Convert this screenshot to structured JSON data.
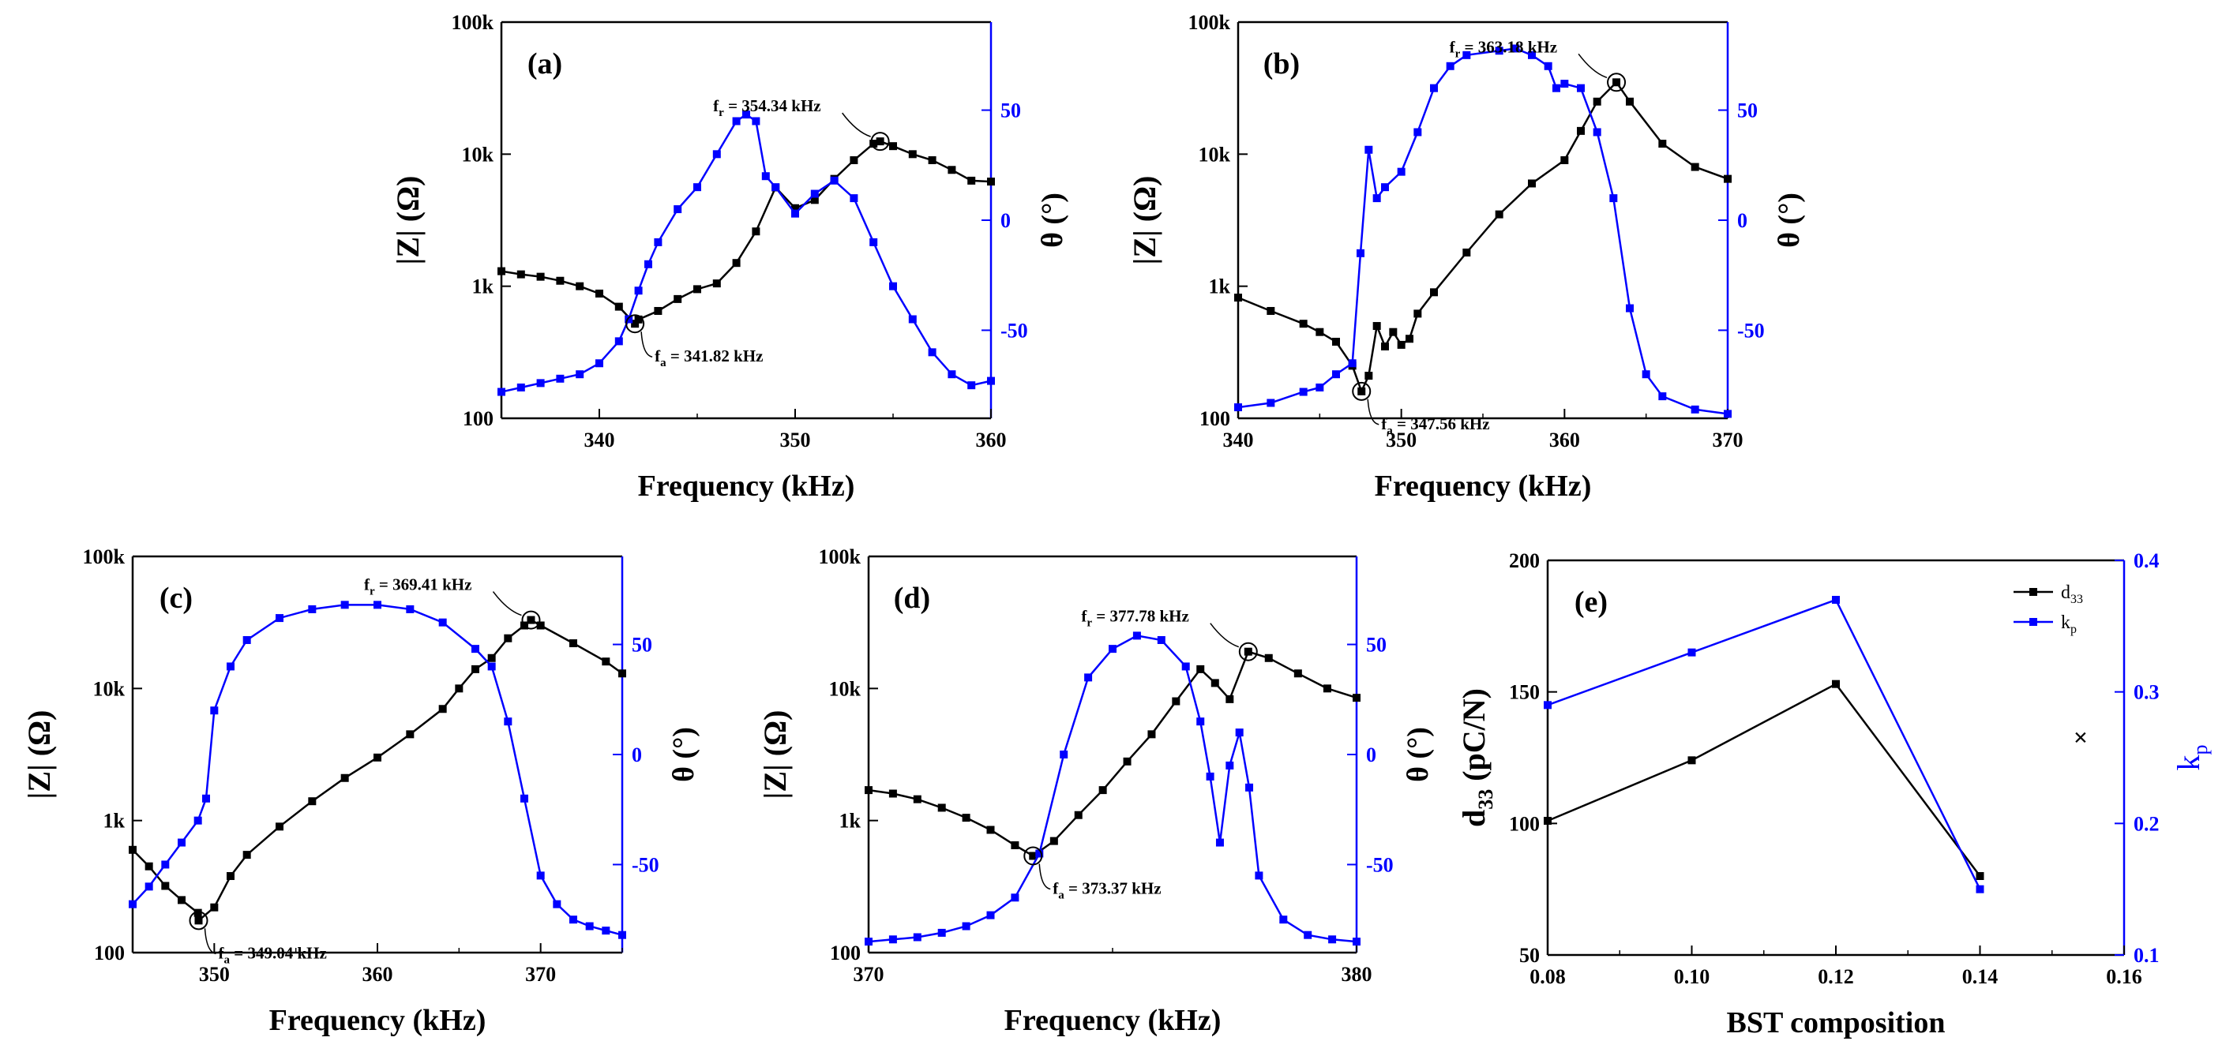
{
  "colors": {
    "impedance": "#000000",
    "phase": "#0000ff",
    "d33": "#000000",
    "kp": "#0000ff"
  },
  "chart_data": [
    {
      "type": "line",
      "label": "(a)",
      "xlabel": "Frequency (kHz)",
      "ylabel_left": "|Z| (Ω)",
      "ylabel_right": "θ (°)",
      "xlim": [
        335,
        360
      ],
      "xticks": [
        "340",
        "350",
        "360"
      ],
      "ylim_left": [
        100,
        100000
      ],
      "yscale_left": "log",
      "yticks_left": [
        "100",
        "1k",
        "10k",
        "100k"
      ],
      "ylim_right": [
        -90,
        90
      ],
      "yticks_right": [
        "-50",
        "0",
        "50"
      ],
      "annotations": [
        {
          "text": "fa = 341.82 kHz",
          "x": 341.82,
          "y": 520,
          "series": "impedance"
        },
        {
          "text": "fr = 354.34 kHz",
          "x": 354.34,
          "y": 12500,
          "series": "impedance"
        }
      ],
      "series": [
        {
          "name": "|Z|",
          "axis": "left",
          "color": "#000000",
          "x": [
            335,
            336,
            337,
            338,
            339,
            340,
            341,
            341.82,
            342,
            343,
            344,
            345,
            346,
            347,
            348,
            349,
            350,
            351,
            352,
            353,
            354,
            354.34,
            355,
            356,
            357,
            358,
            359,
            360
          ],
          "y": [
            1300,
            1230,
            1180,
            1100,
            1000,
            880,
            700,
            520,
            560,
            650,
            800,
            950,
            1050,
            1500,
            2600,
            5600,
            3900,
            4500,
            6500,
            9000,
            12000,
            12500,
            11500,
            10000,
            9000,
            7600,
            6300,
            6200
          ]
        },
        {
          "name": "θ",
          "axis": "right",
          "color": "#0000ff",
          "x": [
            335,
            336,
            337,
            338,
            339,
            340,
            341,
            341.5,
            342,
            342.5,
            343,
            344,
            345,
            346,
            347,
            347.5,
            348,
            348.5,
            349,
            350,
            351,
            352,
            353,
            354,
            355,
            356,
            357,
            358,
            359,
            360
          ],
          "y": [
            -78,
            -76,
            -74,
            -72,
            -70,
            -65,
            -55,
            -45,
            -32,
            -20,
            -10,
            5,
            15,
            30,
            45,
            48,
            45,
            20,
            15,
            3,
            12,
            18,
            10,
            -10,
            -30,
            -45,
            -60,
            -70,
            -75,
            -73
          ]
        }
      ]
    },
    {
      "type": "line",
      "label": "(b)",
      "xlabel": "Frequency (kHz)",
      "ylabel_left": "|Z| (Ω)",
      "ylabel_right": "θ (°)",
      "xlim": [
        340,
        370
      ],
      "xticks": [
        "340",
        "350",
        "360",
        "370"
      ],
      "ylim_left": [
        100,
        100000
      ],
      "yscale_left": "log",
      "yticks_left": [
        "100",
        "1k",
        "10k",
        "100k"
      ],
      "ylim_right": [
        -90,
        90
      ],
      "yticks_right": [
        "-50",
        "0",
        "50"
      ],
      "annotations": [
        {
          "text": "fa = 347.56 kHz",
          "x": 347.56,
          "y": 160,
          "series": "impedance"
        },
        {
          "text": "fr = 363.18 kHz",
          "x": 363.18,
          "y": 35000,
          "series": "impedance"
        }
      ],
      "series": [
        {
          "name": "|Z|",
          "axis": "left",
          "color": "#000000",
          "x": [
            340,
            342,
            344,
            345,
            346,
            347,
            347.56,
            348,
            348.5,
            349,
            349.5,
            350,
            350.5,
            351,
            352,
            354,
            356,
            358,
            360,
            361,
            362,
            363.18,
            364,
            366,
            368,
            370
          ],
          "y": [
            820,
            650,
            520,
            450,
            380,
            250,
            160,
            210,
            500,
            350,
            450,
            360,
            400,
            620,
            900,
            1800,
            3500,
            6000,
            9000,
            15000,
            25000,
            35000,
            25000,
            12000,
            8000,
            6500
          ]
        },
        {
          "name": "θ",
          "axis": "right",
          "color": "#0000ff",
          "x": [
            340,
            342,
            344,
            345,
            346,
            347,
            347.5,
            348,
            348.5,
            349,
            350,
            351,
            352,
            353,
            354,
            356,
            357,
            358,
            359,
            359.5,
            360,
            361,
            362,
            363,
            364,
            365,
            366,
            368,
            370
          ],
          "y": [
            -85,
            -83,
            -78,
            -76,
            -70,
            -65,
            -15,
            32,
            10,
            15,
            22,
            40,
            60,
            70,
            75,
            77,
            78,
            75,
            70,
            60,
            62,
            60,
            40,
            10,
            -40,
            -70,
            -80,
            -86,
            -88
          ]
        }
      ]
    },
    {
      "type": "line",
      "label": "(c)",
      "xlabel": "Frequency (kHz)",
      "ylabel_left": "|Z| (Ω)",
      "ylabel_right": "θ (°)",
      "xlim": [
        345,
        375
      ],
      "xticks": [
        "350",
        "360",
        "370"
      ],
      "ylim_left": [
        100,
        100000
      ],
      "yscale_left": "log",
      "yticks_left": [
        "100",
        "1k",
        "10k",
        "100k"
      ],
      "ylim_right": [
        -90,
        90
      ],
      "yticks_right": [
        "-50",
        "0",
        "50"
      ],
      "annotations": [
        {
          "text": "fa = 349.04 kHz",
          "x": 349.04,
          "y": 175,
          "series": "impedance"
        },
        {
          "text": "fr = 369.41 kHz",
          "x": 369.41,
          "y": 33000,
          "series": "impedance"
        }
      ],
      "series": [
        {
          "name": "|Z|",
          "axis": "left",
          "color": "#000000",
          "x": [
            345,
            346,
            347,
            348,
            349,
            349.04,
            350,
            351,
            352,
            354,
            356,
            358,
            360,
            362,
            364,
            365,
            366,
            367,
            368,
            369,
            369.41,
            370,
            372,
            374,
            375
          ],
          "y": [
            600,
            450,
            320,
            250,
            200,
            175,
            220,
            380,
            550,
            900,
            1400,
            2100,
            3000,
            4500,
            7000,
            10000,
            14000,
            17000,
            24000,
            30000,
            33000,
            30000,
            22000,
            16000,
            13000
          ]
        },
        {
          "name": "θ",
          "axis": "right",
          "color": "#0000ff",
          "x": [
            345,
            346,
            347,
            348,
            349,
            349.5,
            350,
            351,
            352,
            354,
            356,
            358,
            360,
            362,
            364,
            366,
            367,
            368,
            369,
            370,
            371,
            372,
            373,
            374,
            375
          ],
          "y": [
            -68,
            -60,
            -50,
            -40,
            -30,
            -20,
            20,
            40,
            52,
            62,
            66,
            68,
            68,
            66,
            60,
            48,
            40,
            15,
            -20,
            -55,
            -68,
            -75,
            -78,
            -80,
            -82
          ]
        }
      ]
    },
    {
      "type": "line",
      "label": "(d)",
      "xlabel": "Frequency (kHz)",
      "ylabel_left": "|Z| (Ω)",
      "ylabel_right": "θ (°)",
      "xlim": [
        370,
        380
      ],
      "xticks": [
        "370",
        "380"
      ],
      "ylim_left": [
        100,
        100000
      ],
      "yscale_left": "log",
      "yticks_left": [
        "100",
        "1k",
        "10k",
        "100k"
      ],
      "ylim_right": [
        -90,
        90
      ],
      "yticks_right": [
        "-50",
        "0",
        "50"
      ],
      "annotations": [
        {
          "text": "fa = 373.37 kHz",
          "x": 373.37,
          "y": 540,
          "series": "impedance"
        },
        {
          "text": "fr = 377.78 kHz",
          "x": 377.78,
          "y": 19000,
          "series": "impedance"
        }
      ],
      "series": [
        {
          "name": "|Z|",
          "axis": "left",
          "color": "#000000",
          "x": [
            370,
            370.5,
            371,
            371.5,
            372,
            372.5,
            373,
            373.37,
            373.8,
            374.3,
            374.8,
            375.3,
            375.8,
            376.3,
            376.8,
            377.1,
            377.4,
            377.78,
            378.2,
            378.8,
            379.4,
            380
          ],
          "y": [
            1700,
            1600,
            1450,
            1250,
            1050,
            850,
            650,
            540,
            700,
            1100,
            1700,
            2800,
            4500,
            8000,
            14000,
            11000,
            8300,
            19000,
            17000,
            13000,
            10000,
            8500
          ]
        },
        {
          "name": "θ",
          "axis": "right",
          "color": "#0000ff",
          "x": [
            370,
            370.5,
            371,
            371.5,
            372,
            372.5,
            373,
            373.5,
            374,
            374.5,
            375,
            375.5,
            376,
            376.5,
            376.8,
            377,
            377.2,
            377.4,
            377.6,
            377.8,
            378,
            378.5,
            379,
            379.5,
            380
          ],
          "y": [
            -85,
            -84,
            -83,
            -81,
            -78,
            -73,
            -65,
            -45,
            0,
            35,
            48,
            54,
            52,
            40,
            15,
            -10,
            -40,
            -5,
            10,
            -15,
            -55,
            -75,
            -82,
            -84,
            -85
          ]
        }
      ]
    },
    {
      "type": "line",
      "label": "(e)",
      "xlabel": "BST composition",
      "ylabel_left": "d33 (pC/N)",
      "ylabel_right": "kp",
      "xlim": [
        0.08,
        0.16
      ],
      "xticks": [
        "0.08",
        "0.10",
        "0.12",
        "0.14",
        "0.16"
      ],
      "ylim_left": [
        50,
        200
      ],
      "yticks_left": [
        "50",
        "100",
        "150",
        "200"
      ],
      "ylim_right": [
        0.1,
        0.4
      ],
      "yticks_right": [
        "0.1",
        "0.2",
        "0.3",
        "0.4"
      ],
      "legend": [
        "d33",
        "kp"
      ],
      "legend_position": "top-right",
      "extra_marker": "×",
      "series": [
        {
          "name": "d33",
          "axis": "left",
          "color": "#000000",
          "x": [
            0.08,
            0.1,
            0.12,
            0.14
          ],
          "y": [
            101,
            124,
            153,
            80
          ]
        },
        {
          "name": "kp",
          "axis": "right",
          "color": "#0000ff",
          "x": [
            0.08,
            0.1,
            0.12,
            0.14
          ],
          "y": [
            0.29,
            0.33,
            0.37,
            0.15
          ]
        }
      ]
    }
  ]
}
